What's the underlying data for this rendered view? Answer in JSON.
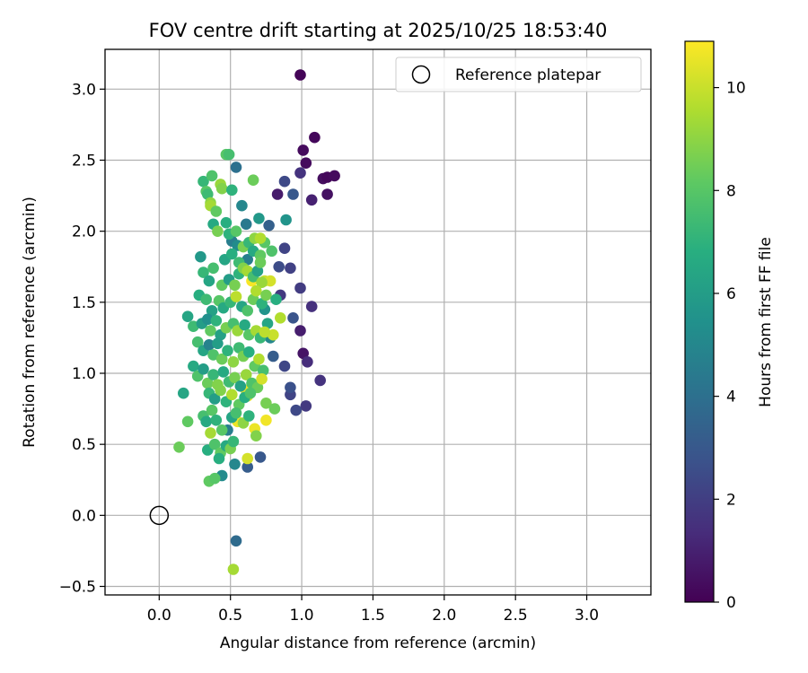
{
  "chart_data": {
    "type": "scatter",
    "title": "FOV centre drift starting at 2025/10/25 18:53:40",
    "xlabel": "Angular distance from reference (arcmin)",
    "ylabel": "Rotation from reference (arcmin)",
    "xlim": [
      -0.38,
      3.45
    ],
    "ylim": [
      -0.56,
      3.28
    ],
    "xticks": [
      "0.0",
      "0.5",
      "1.0",
      "1.5",
      "2.0",
      "2.5",
      "3.0"
    ],
    "yticks": [
      "−0.5",
      "0.0",
      "0.5",
      "1.0",
      "1.5",
      "2.0",
      "2.5",
      "3.0"
    ],
    "xtick_values": [
      0,
      0.5,
      1,
      1.5,
      2,
      2.5,
      3
    ],
    "ytick_values": [
      -0.5,
      0,
      0.5,
      1,
      1.5,
      2,
      2.5,
      3
    ],
    "grid": true,
    "colormap": "viridis",
    "legend": {
      "position": "top-right",
      "entries": [
        "Reference platepar"
      ]
    },
    "reference_point": {
      "x": 0.0,
      "y": 0.0,
      "label": "Reference platepar"
    },
    "colorbar": {
      "label": "Hours from first FF file",
      "range": [
        0,
        10.9
      ],
      "ticks": [
        "0",
        "2",
        "4",
        "6",
        "8",
        "10"
      ],
      "tick_values": [
        0,
        2,
        4,
        6,
        8,
        10
      ]
    },
    "series": [
      {
        "points": [
          [
            0.99,
            3.1,
            0.1
          ],
          [
            1.09,
            2.66,
            0.2
          ],
          [
            1.01,
            2.57,
            0.3
          ],
          [
            1.03,
            2.48,
            0.3
          ],
          [
            1.15,
            2.37,
            0.4
          ],
          [
            1.18,
            2.38,
            0.2
          ],
          [
            1.23,
            2.39,
            0.3
          ],
          [
            1.18,
            2.26,
            0.5
          ],
          [
            1.07,
            2.22,
            1.0
          ],
          [
            0.83,
            2.26,
            0.8
          ],
          [
            0.99,
            2.41,
            1.6
          ],
          [
            0.88,
            2.35,
            2.4
          ],
          [
            0.94,
            2.26,
            3.0
          ],
          [
            0.88,
            1.88,
            2.2
          ],
          [
            0.92,
            1.74,
            2.1
          ],
          [
            0.99,
            1.6,
            1.9
          ],
          [
            1.07,
            1.47,
            1.5
          ],
          [
            0.84,
            1.75,
            2.5
          ],
          [
            0.85,
            1.55,
            1.8
          ],
          [
            0.94,
            1.39,
            2.8
          ],
          [
            0.99,
            1.3,
            0.9
          ],
          [
            1.01,
            1.14,
            0.6
          ],
          [
            1.04,
            1.08,
            1.4
          ],
          [
            1.13,
            0.95,
            1.6
          ],
          [
            1.03,
            0.77,
            1.8
          ],
          [
            0.96,
            0.74,
            2.4
          ],
          [
            0.92,
            0.85,
            2.2
          ],
          [
            0.92,
            0.9,
            2.7
          ],
          [
            0.88,
            1.05,
            2.3
          ],
          [
            0.8,
            1.12,
            3.2
          ],
          [
            0.77,
            2.04,
            3.3
          ],
          [
            0.89,
            2.08,
            5.6
          ],
          [
            0.54,
            2.45,
            4.0
          ],
          [
            0.58,
            2.18,
            5.0
          ],
          [
            0.61,
            2.05,
            4.4
          ],
          [
            0.7,
            2.09,
            5.8
          ],
          [
            0.51,
            1.93,
            4.6
          ],
          [
            0.55,
            1.9,
            5.2
          ],
          [
            0.62,
            1.8,
            4.6
          ],
          [
            0.62,
            0.34,
            3.2
          ],
          [
            0.71,
            0.41,
            3.0
          ],
          [
            0.54,
            -0.18,
            3.8
          ],
          [
            0.53,
            0.36,
            5.0
          ],
          [
            0.48,
            0.6,
            4.6
          ],
          [
            0.44,
            0.28,
            5.2
          ],
          [
            0.76,
            1.35,
            6.4
          ],
          [
            0.74,
            1.45,
            5.6
          ],
          [
            0.78,
            1.25,
            5.0
          ],
          [
            0.52,
            -0.38,
            9.4
          ],
          [
            0.55,
            0.66,
            10.6
          ],
          [
            0.62,
            0.4,
            10.2
          ],
          [
            0.67,
            0.61,
            10.6
          ],
          [
            0.75,
            0.67,
            10.7
          ],
          [
            0.61,
            0.88,
            10.6
          ],
          [
            0.62,
            0.84,
            10.4
          ],
          [
            0.65,
            1.65,
            10.8
          ],
          [
            0.74,
            1.65,
            10.0
          ],
          [
            0.78,
            1.65,
            10.2
          ],
          [
            0.8,
            1.27,
            10.0
          ],
          [
            0.85,
            1.39,
            9.6
          ],
          [
            0.66,
            2.36,
            8.4
          ],
          [
            0.47,
            2.54,
            8.0
          ],
          [
            0.49,
            2.54,
            7.6
          ],
          [
            0.31,
            2.35,
            7.2
          ],
          [
            0.33,
            2.28,
            8.0
          ],
          [
            0.34,
            2.26,
            7.4
          ],
          [
            0.36,
            2.2,
            9.0
          ],
          [
            0.36,
            2.18,
            9.4
          ],
          [
            0.37,
            2.39,
            7.8
          ],
          [
            0.43,
            2.33,
            9.2
          ],
          [
            0.44,
            2.3,
            8.8
          ],
          [
            0.51,
            2.29,
            7.0
          ],
          [
            0.38,
            2.05,
            6.6
          ],
          [
            0.4,
            2.14,
            8.2
          ],
          [
            0.47,
            2.06,
            6.8
          ],
          [
            0.41,
            2.0,
            8.6
          ],
          [
            0.49,
            1.98,
            7.0
          ],
          [
            0.54,
            2.0,
            8.0
          ],
          [
            0.46,
            1.8,
            6.4
          ],
          [
            0.51,
            1.84,
            6.8
          ],
          [
            0.56,
            1.78,
            7.4
          ],
          [
            0.59,
            1.89,
            8.6
          ],
          [
            0.63,
            1.92,
            7.2
          ],
          [
            0.66,
            1.86,
            6.6
          ],
          [
            0.71,
            1.83,
            8.2
          ],
          [
            0.74,
            1.92,
            8.0
          ],
          [
            0.67,
            1.95,
            9.0
          ],
          [
            0.71,
            1.95,
            9.6
          ],
          [
            0.79,
            1.86,
            7.8
          ],
          [
            0.29,
            1.82,
            5.8
          ],
          [
            0.31,
            1.71,
            7.2
          ],
          [
            0.35,
            1.65,
            6.4
          ],
          [
            0.38,
            1.74,
            7.6
          ],
          [
            0.44,
            1.62,
            8.2
          ],
          [
            0.49,
            1.66,
            6.0
          ],
          [
            0.53,
            1.62,
            8.6
          ],
          [
            0.56,
            1.7,
            7.0
          ],
          [
            0.59,
            1.74,
            8.8
          ],
          [
            0.62,
            1.72,
            9.4
          ],
          [
            0.66,
            1.68,
            7.6
          ],
          [
            0.69,
            1.72,
            6.2
          ],
          [
            0.71,
            1.78,
            8.4
          ],
          [
            0.72,
            1.64,
            9.2
          ],
          [
            0.28,
            1.55,
            6.8
          ],
          [
            0.33,
            1.52,
            7.4
          ],
          [
            0.37,
            1.44,
            6.2
          ],
          [
            0.42,
            1.51,
            8.0
          ],
          [
            0.45,
            1.46,
            6.6
          ],
          [
            0.5,
            1.5,
            7.2
          ],
          [
            0.54,
            1.54,
            9.8
          ],
          [
            0.58,
            1.47,
            6.4
          ],
          [
            0.62,
            1.44,
            7.8
          ],
          [
            0.66,
            1.52,
            8.4
          ],
          [
            0.68,
            1.58,
            9.6
          ],
          [
            0.72,
            1.49,
            7.0
          ],
          [
            0.75,
            1.55,
            8.6
          ],
          [
            0.82,
            1.52,
            6.8
          ],
          [
            0.2,
            1.4,
            6.4
          ],
          [
            0.24,
            1.33,
            7.4
          ],
          [
            0.3,
            1.35,
            6.0
          ],
          [
            0.34,
            1.38,
            5.4
          ],
          [
            0.36,
            1.3,
            8.2
          ],
          [
            0.4,
            1.37,
            7.0
          ],
          [
            0.43,
            1.27,
            6.2
          ],
          [
            0.47,
            1.32,
            8.6
          ],
          [
            0.52,
            1.35,
            7.6
          ],
          [
            0.55,
            1.3,
            9.2
          ],
          [
            0.6,
            1.34,
            6.6
          ],
          [
            0.63,
            1.27,
            8.0
          ],
          [
            0.68,
            1.3,
            9.4
          ],
          [
            0.71,
            1.25,
            7.2
          ],
          [
            0.74,
            1.29,
            9.8
          ],
          [
            0.27,
            1.22,
            7.6
          ],
          [
            0.31,
            1.16,
            6.4
          ],
          [
            0.35,
            1.2,
            4.8
          ],
          [
            0.38,
            1.13,
            7.8
          ],
          [
            0.41,
            1.21,
            6.0
          ],
          [
            0.44,
            1.1,
            8.4
          ],
          [
            0.48,
            1.16,
            7.0
          ],
          [
            0.52,
            1.08,
            9.0
          ],
          [
            0.56,
            1.18,
            7.4
          ],
          [
            0.59,
            1.12,
            8.6
          ],
          [
            0.63,
            1.15,
            6.8
          ],
          [
            0.67,
            1.05,
            8.2
          ],
          [
            0.7,
            1.1,
            9.6
          ],
          [
            0.73,
            1.02,
            7.6
          ],
          [
            0.24,
            1.05,
            6.6
          ],
          [
            0.27,
            0.98,
            7.8
          ],
          [
            0.31,
            1.03,
            6.0
          ],
          [
            0.34,
            0.93,
            8.4
          ],
          [
            0.38,
            0.99,
            7.2
          ],
          [
            0.41,
            0.92,
            8.8
          ],
          [
            0.45,
            1.01,
            6.6
          ],
          [
            0.49,
            0.94,
            7.4
          ],
          [
            0.53,
            0.97,
            8.6
          ],
          [
            0.57,
            0.91,
            6.2
          ],
          [
            0.61,
            0.99,
            9.2
          ],
          [
            0.65,
            0.93,
            7.8
          ],
          [
            0.69,
            0.9,
            8.4
          ],
          [
            0.72,
            0.96,
            10.2
          ],
          [
            0.17,
            0.86,
            6.4
          ],
          [
            0.35,
            0.86,
            7.2
          ],
          [
            0.39,
            0.82,
            6.0
          ],
          [
            0.43,
            0.88,
            8.8
          ],
          [
            0.47,
            0.8,
            7.0
          ],
          [
            0.51,
            0.85,
            9.6
          ],
          [
            0.56,
            0.78,
            8.2
          ],
          [
            0.6,
            0.83,
            6.8
          ],
          [
            0.64,
            0.86,
            7.8
          ],
          [
            0.75,
            0.79,
            8.6
          ],
          [
            0.81,
            0.75,
            8.4
          ],
          [
            0.2,
            0.66,
            8.2
          ],
          [
            0.31,
            0.7,
            7.6
          ],
          [
            0.33,
            0.66,
            6.6
          ],
          [
            0.37,
            0.74,
            8.0
          ],
          [
            0.4,
            0.67,
            7.0
          ],
          [
            0.36,
            0.58,
            9.4
          ],
          [
            0.44,
            0.6,
            8.0
          ],
          [
            0.51,
            0.69,
            6.4
          ],
          [
            0.54,
            0.72,
            7.6
          ],
          [
            0.59,
            0.65,
            9.0
          ],
          [
            0.63,
            0.7,
            7.0
          ],
          [
            0.68,
            0.56,
            8.8
          ],
          [
            0.14,
            0.48,
            8.4
          ],
          [
            0.34,
            0.46,
            6.8
          ],
          [
            0.39,
            0.5,
            7.8
          ],
          [
            0.43,
            0.44,
            8.2
          ],
          [
            0.47,
            0.49,
            6.6
          ],
          [
            0.5,
            0.47,
            8.6
          ],
          [
            0.52,
            0.52,
            7.2
          ],
          [
            0.35,
            0.24,
            8.2
          ],
          [
            0.39,
            0.26,
            8.0
          ],
          [
            0.42,
            0.4,
            6.8
          ]
        ]
      }
    ]
  }
}
